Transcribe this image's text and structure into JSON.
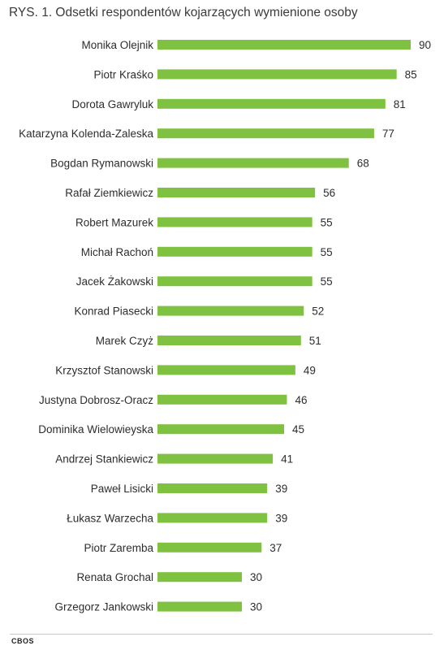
{
  "chart_data": {
    "type": "bar",
    "orientation": "horizontal",
    "title": "RYS. 1. Odsetki respondentów kojarzących wymienione osoby",
    "categories": [
      "Monika Olejnik",
      "Piotr Kraśko",
      "Dorota Gawryluk",
      "Katarzyna Kolenda-Zaleska",
      "Bogdan Rymanowski",
      "Rafał Ziemkiewicz",
      "Robert Mazurek",
      "Michał Rachoń",
      "Jacek Żakowski",
      "Konrad Piasecki",
      "Marek Czyż",
      "Krzysztof Stanowski",
      "Justyna Dobrosz-Oracz",
      "Dominika Wielowieyska",
      "Andrzej Stankiewicz",
      "Paweł Lisicki",
      "Łukasz Warzecha",
      "Piotr Zaremba",
      "Renata Grochal",
      "Grzegorz Jankowski"
    ],
    "values": [
      90,
      85,
      81,
      77,
      68,
      56,
      55,
      55,
      55,
      52,
      51,
      49,
      46,
      45,
      41,
      39,
      39,
      37,
      30,
      30
    ],
    "xlim": [
      0,
      90
    ],
    "grid": false,
    "legend": "none",
    "bar_color": "#7fc241"
  },
  "source": "CBOS"
}
